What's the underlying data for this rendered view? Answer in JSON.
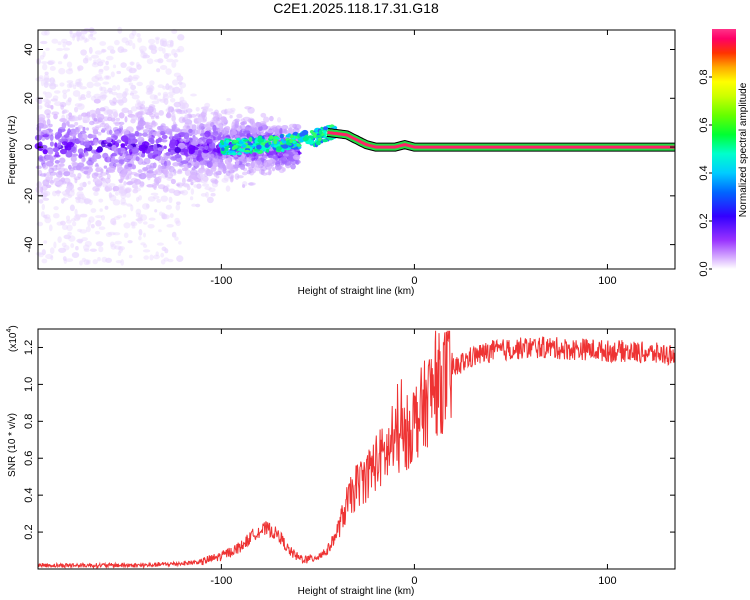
{
  "title": "C2E1.2025.118.17.31.G18",
  "chart_data": [
    {
      "type": "heatmap",
      "name": "spectrogram",
      "xlabel": "Height of straight line (km)",
      "ylabel": "Frequency (Hz)",
      "xlim": [
        -195,
        135
      ],
      "ylim": [
        -50,
        48
      ],
      "xticks": [
        -100,
        0,
        100
      ],
      "xtick_labels": [
        "-100",
        "0",
        "100"
      ],
      "yticks": [
        -40,
        -20,
        0,
        20,
        40
      ],
      "ytick_labels": [
        "-40",
        "-20",
        "0",
        "20",
        "40"
      ],
      "colorbar": {
        "label": "Normalized spectral amplitude",
        "range": [
          0,
          1
        ],
        "ticks": [
          0.0,
          0.2,
          0.4,
          0.6,
          0.8
        ],
        "tick_labels": [
          "0.0",
          "0.2",
          "0.4",
          "0.6",
          "0.8"
        ]
      },
      "ridge": {
        "x": [
          -95,
          -80,
          -65,
          -50,
          -45,
          -35,
          -30,
          -25,
          -20,
          -15,
          -10,
          -5,
          0,
          20,
          60,
          100,
          135
        ],
        "y": [
          0,
          1,
          2,
          4,
          6,
          5,
          3,
          1,
          0,
          0,
          0,
          1,
          0,
          0,
          0,
          0,
          0
        ]
      }
    },
    {
      "type": "line",
      "name": "snr",
      "xlabel": "Height of straight line (km)",
      "ylabel": "SNR (10 * v/v)",
      "yscale_label": "(x10",
      "yscale_exponent": "4",
      "xlim": [
        -195,
        135
      ],
      "ylim": [
        0,
        1.3
      ],
      "xticks": [
        -100,
        0,
        100
      ],
      "xtick_labels": [
        "-100",
        "0",
        "100"
      ],
      "yticks": [
        0.2,
        0.4,
        0.6,
        0.8,
        1.0,
        1.2
      ],
      "ytick_labels": [
        "0.2",
        "0.4",
        "0.6",
        "0.8",
        "1.0",
        "1.2"
      ],
      "series": [
        {
          "color": "#ee3333",
          "x": [
            -195,
            -180,
            -160,
            -140,
            -120,
            -110,
            -100,
            -90,
            -82,
            -76,
            -70,
            -65,
            -60,
            -55,
            -50,
            -45,
            -40,
            -35,
            -30,
            -25,
            -20,
            -15,
            -10,
            -5,
            0,
            5,
            10,
            15,
            20,
            25,
            30,
            40,
            50,
            60,
            70,
            80,
            90,
            100,
            110,
            120,
            135
          ],
          "y": [
            0.02,
            0.02,
            0.02,
            0.02,
            0.03,
            0.04,
            0.07,
            0.12,
            0.2,
            0.22,
            0.18,
            0.1,
            0.06,
            0.05,
            0.07,
            0.1,
            0.2,
            0.35,
            0.45,
            0.5,
            0.58,
            0.62,
            0.68,
            0.72,
            0.8,
            0.88,
            0.98,
            1.02,
            1.08,
            1.12,
            1.15,
            1.18,
            1.19,
            1.2,
            1.2,
            1.19,
            1.19,
            1.18,
            1.18,
            1.17,
            1.16
          ]
        }
      ]
    }
  ]
}
